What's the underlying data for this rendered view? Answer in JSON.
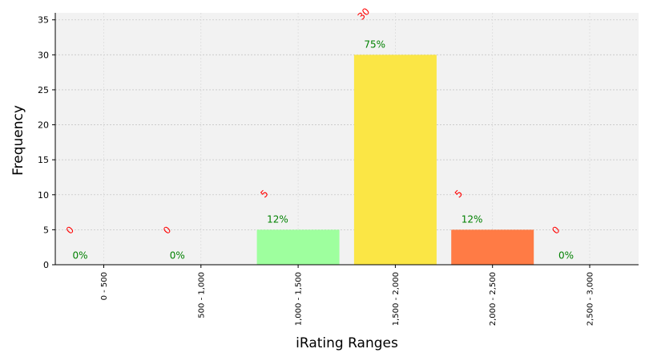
{
  "chart_data": {
    "type": "bar",
    "categories": [
      "0 - 500",
      "500 - 1,000",
      "1,000 - 1,500",
      "1,500 - 2,000",
      "2,000 - 2,500",
      "2,500 - 3,000"
    ],
    "values": [
      0,
      0,
      5,
      30,
      5,
      0
    ],
    "percent_labels": [
      "0%",
      "0%",
      "12%",
      "75%",
      "12%",
      "0%"
    ],
    "count_labels": [
      "0",
      "0",
      "5",
      "30",
      "5",
      "0"
    ],
    "bar_colors": [
      "#9eff9e",
      "#9eff9e",
      "#9eff9e",
      "#fbe645",
      "#ff7b45",
      "#ff7b45"
    ],
    "count_label_color": "#ff0000",
    "percent_label_color": "#008000",
    "plot_background": "#f2f2f2",
    "grid": true,
    "xlabel": "iRating Ranges",
    "ylabel": "Frequency",
    "ylim": [
      0,
      36
    ],
    "yticks": [
      0,
      5,
      10,
      15,
      20,
      25,
      30,
      35
    ]
  }
}
